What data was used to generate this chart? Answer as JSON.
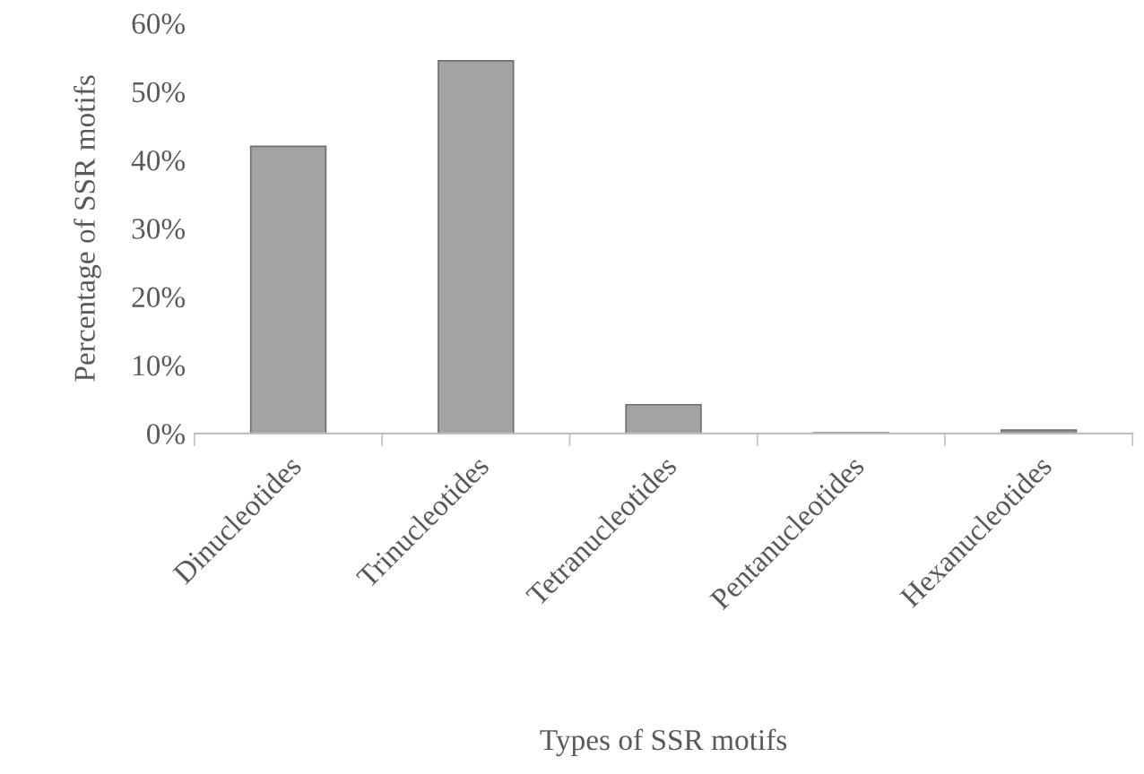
{
  "chart_data": {
    "type": "bar",
    "xlabel": "Types of SSR motifs",
    "ylabel": "Percentage of SSR motifs",
    "categories": [
      "Dinucleotides",
      "Trinucleotides",
      "Tetranucleotides",
      "Pentanucleotides",
      "Hexanucleotides"
    ],
    "values": [
      42,
      54.5,
      4.2,
      0.1,
      0.5
    ],
    "colors": [
      "#a3a3a3",
      "#a3a3a3",
      "#a3a3a3",
      "#333333",
      "#8c8c8c"
    ],
    "ylim": [
      0,
      60
    ],
    "yticks": [
      {
        "value": 0,
        "label": "0%"
      },
      {
        "value": 10,
        "label": "10%"
      },
      {
        "value": 20,
        "label": "20%"
      },
      {
        "value": 30,
        "label": "30%"
      },
      {
        "value": 40,
        "label": "40%"
      },
      {
        "value": 50,
        "label": "50%"
      },
      {
        "value": 60,
        "label": "60%"
      }
    ],
    "grid": false,
    "legend": false
  }
}
